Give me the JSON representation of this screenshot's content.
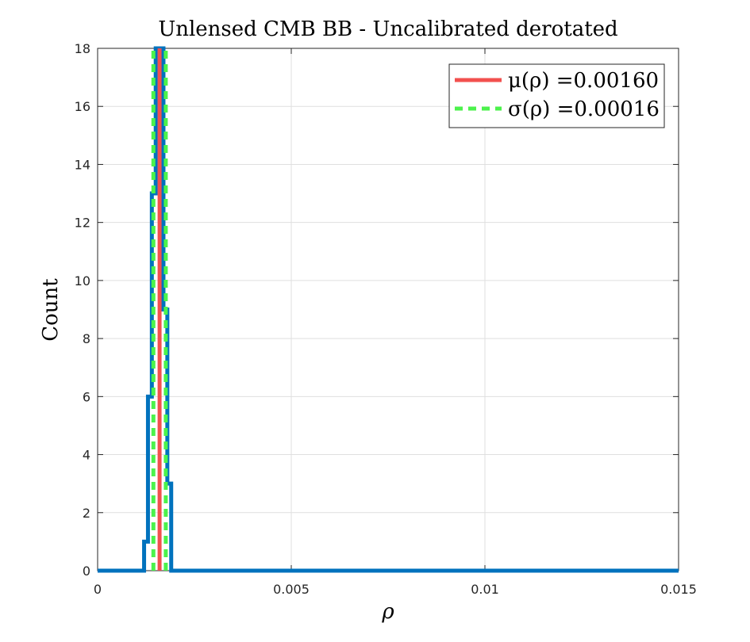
{
  "chart_data": {
    "type": "histogram",
    "title": "Unlensed CMB BB - Uncalibrated derotated",
    "xlabel": "ρ",
    "ylabel": "Count",
    "xlim": [
      0,
      0.015
    ],
    "ylim": [
      0,
      18
    ],
    "xticks": [
      0,
      0.005,
      0.01,
      0.015
    ],
    "xtick_labels": [
      "0",
      "0.005",
      "0.01",
      "0.015"
    ],
    "yticks": [
      0,
      2,
      4,
      6,
      8,
      10,
      12,
      14,
      16,
      18
    ],
    "ytick_labels": [
      "0",
      "2",
      "4",
      "6",
      "8",
      "10",
      "12",
      "14",
      "16",
      "18"
    ],
    "grid": true,
    "legend_position": "top-right",
    "histogram": {
      "name": "",
      "color": "#0072BD",
      "bin_edges": [
        0.0012,
        0.0013,
        0.0014,
        0.0015,
        0.0016,
        0.0017,
        0.0018,
        0.0019,
        0.002,
        0.0021
      ],
      "counts": [
        1,
        6,
        13,
        18,
        18,
        9,
        3,
        0,
        0
      ]
    },
    "mean_line": {
      "label": "μ(ρ) =0.00160",
      "value": 0.0016,
      "color": "#F2504E",
      "style": "solid"
    },
    "std_lines": {
      "label": "σ(ρ) =0.00016",
      "values": [
        0.00144,
        0.00176
      ],
      "color": "#4CF24C",
      "style": "dashed"
    }
  }
}
